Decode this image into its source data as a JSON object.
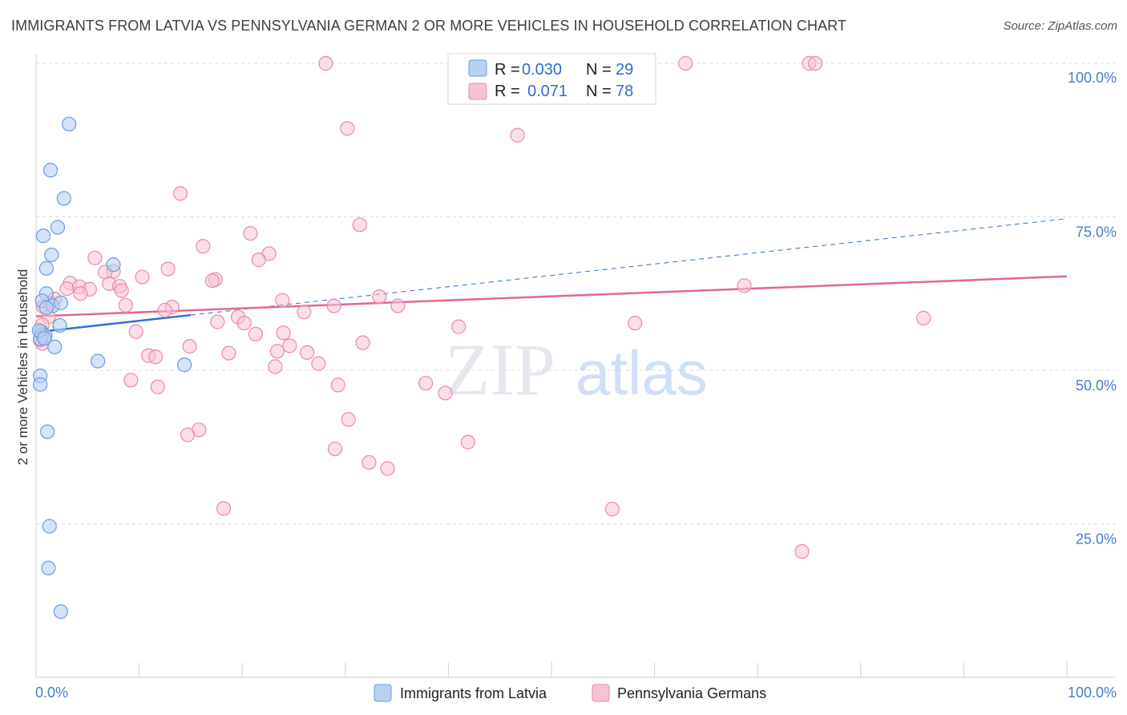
{
  "title": "IMMIGRANTS FROM LATVIA VS PENNSYLVANIA GERMAN 2 OR MORE VEHICLES IN HOUSEHOLD CORRELATION CHART",
  "source": "Source: ZipAtlas.com",
  "watermark": {
    "zip": "ZIP",
    "atlas": "atlas"
  },
  "colors": {
    "blue_fill": "#b8d1f3",
    "blue_stroke": "#6b9be0",
    "blue_line": "#2f6fcf",
    "pink_fill": "#f7c3d3",
    "pink_stroke": "#e98aa8",
    "pink_line": "#e0698f",
    "grid": "#d9d9d9",
    "tick_text": "#4a7cc7"
  },
  "legend": {
    "r_label": "R =",
    "n_label": "N =",
    "rows": [
      {
        "series": "latvia",
        "r": "0.030",
        "n": "29"
      },
      {
        "series": "penn",
        "r": "0.071",
        "n": "78"
      }
    ]
  },
  "bottom_legend": [
    "Immigrants from Latvia",
    "Pennsylvania Germans"
  ],
  "chart_data": {
    "type": "scatter",
    "title": "IMMIGRANTS FROM LATVIA VS PENNSYLVANIA GERMAN 2 OR MORE VEHICLES IN HOUSEHOLD CORRELATION CHART",
    "xlabel": "",
    "ylabel": "2 or more Vehicles in Household",
    "xlim": [
      0,
      100
    ],
    "ylim": [
      0,
      100
    ],
    "x_tick_labels": [
      "0.0%",
      "100.0%"
    ],
    "y_ticks": [
      25,
      50,
      75,
      100
    ],
    "y_tick_labels": [
      "25.0%",
      "50.0%",
      "75.0%",
      "100.0%"
    ],
    "series": [
      {
        "name": "Immigrants from Latvia",
        "color": "blue",
        "trend": {
          "x0": 0,
          "y0": 56.2,
          "x1": 15,
          "y1": 59.0,
          "dashed_to_x": 100,
          "dashed_to_y": 74.7
        },
        "points": [
          [
            3.2,
            90.1
          ],
          [
            1.4,
            82.6
          ],
          [
            2.7,
            78.0
          ],
          [
            2.1,
            73.3
          ],
          [
            0.7,
            71.9
          ],
          [
            1.5,
            68.8
          ],
          [
            7.5,
            67.2
          ],
          [
            1.0,
            66.6
          ],
          [
            1.0,
            62.5
          ],
          [
            0.6,
            61.3
          ],
          [
            1.6,
            60.5
          ],
          [
            2.4,
            61.0
          ],
          [
            1.0,
            60.2
          ],
          [
            2.3,
            57.3
          ],
          [
            0.5,
            56.3
          ],
          [
            0.6,
            55.8
          ],
          [
            0.9,
            55.6
          ],
          [
            0.4,
            55.1
          ],
          [
            1.8,
            53.8
          ],
          [
            6.0,
            51.5
          ],
          [
            14.4,
            50.9
          ],
          [
            0.4,
            49.1
          ],
          [
            0.4,
            47.7
          ],
          [
            1.1,
            40.0
          ],
          [
            1.3,
            24.6
          ],
          [
            1.2,
            17.8
          ],
          [
            2.4,
            10.7
          ],
          [
            0.3,
            56.5
          ],
          [
            0.8,
            55.2
          ]
        ]
      },
      {
        "name": "Pennsylvania Germans",
        "color": "pink",
        "trend": {
          "x0": 0,
          "y0": 58.8,
          "x1": 100,
          "y1": 65.3
        },
        "points": [
          [
            28.1,
            100.0
          ],
          [
            63.0,
            100.0
          ],
          [
            75.0,
            100.0
          ],
          [
            30.2,
            89.4
          ],
          [
            46.7,
            88.3
          ],
          [
            14.0,
            78.8
          ],
          [
            31.4,
            73.7
          ],
          [
            20.8,
            72.3
          ],
          [
            16.2,
            70.2
          ],
          [
            22.6,
            69.0
          ],
          [
            21.6,
            68.0
          ],
          [
            5.7,
            68.3
          ],
          [
            12.8,
            66.5
          ],
          [
            7.5,
            66.1
          ],
          [
            6.7,
            66.0
          ],
          [
            10.3,
            65.2
          ],
          [
            17.4,
            64.8
          ],
          [
            17.1,
            64.6
          ],
          [
            7.1,
            64.1
          ],
          [
            3.3,
            64.2
          ],
          [
            3.0,
            63.3
          ],
          [
            4.2,
            63.6
          ],
          [
            5.2,
            63.2
          ],
          [
            8.1,
            63.7
          ],
          [
            8.3,
            63.0
          ],
          [
            4.3,
            62.5
          ],
          [
            1.8,
            61.6
          ],
          [
            1.4,
            60.9
          ],
          [
            0.7,
            60.4
          ],
          [
            23.9,
            61.4
          ],
          [
            33.3,
            62.0
          ],
          [
            8.7,
            60.6
          ],
          [
            13.2,
            60.3
          ],
          [
            12.5,
            59.8
          ],
          [
            26.0,
            59.5
          ],
          [
            28.9,
            60.5
          ],
          [
            35.1,
            60.5
          ],
          [
            19.6,
            58.7
          ],
          [
            20.2,
            57.7
          ],
          [
            17.6,
            57.9
          ],
          [
            1.2,
            58.7
          ],
          [
            0.6,
            57.4
          ],
          [
            58.1,
            57.7
          ],
          [
            86.1,
            58.5
          ],
          [
            41.0,
            57.1
          ],
          [
            9.7,
            56.3
          ],
          [
            24.0,
            56.1
          ],
          [
            21.3,
            55.9
          ],
          [
            0.7,
            55.3
          ],
          [
            0.4,
            54.9
          ],
          [
            0.6,
            54.4
          ],
          [
            31.7,
            54.5
          ],
          [
            14.9,
            53.9
          ],
          [
            24.6,
            54.0
          ],
          [
            23.4,
            53.1
          ],
          [
            26.3,
            52.9
          ],
          [
            18.7,
            52.8
          ],
          [
            10.9,
            52.4
          ],
          [
            11.6,
            52.2
          ],
          [
            27.4,
            51.1
          ],
          [
            23.2,
            50.6
          ],
          [
            9.2,
            48.4
          ],
          [
            11.8,
            47.3
          ],
          [
            29.3,
            47.6
          ],
          [
            37.8,
            47.9
          ],
          [
            39.7,
            46.3
          ],
          [
            30.3,
            42.0
          ],
          [
            15.8,
            40.3
          ],
          [
            14.7,
            39.5
          ],
          [
            41.9,
            38.3
          ],
          [
            29.0,
            37.2
          ],
          [
            32.3,
            35.0
          ],
          [
            34.1,
            34.0
          ],
          [
            18.2,
            27.5
          ],
          [
            55.9,
            27.4
          ],
          [
            68.7,
            63.8
          ],
          [
            75.6,
            100.0
          ],
          [
            74.3,
            20.5
          ]
        ]
      }
    ]
  }
}
